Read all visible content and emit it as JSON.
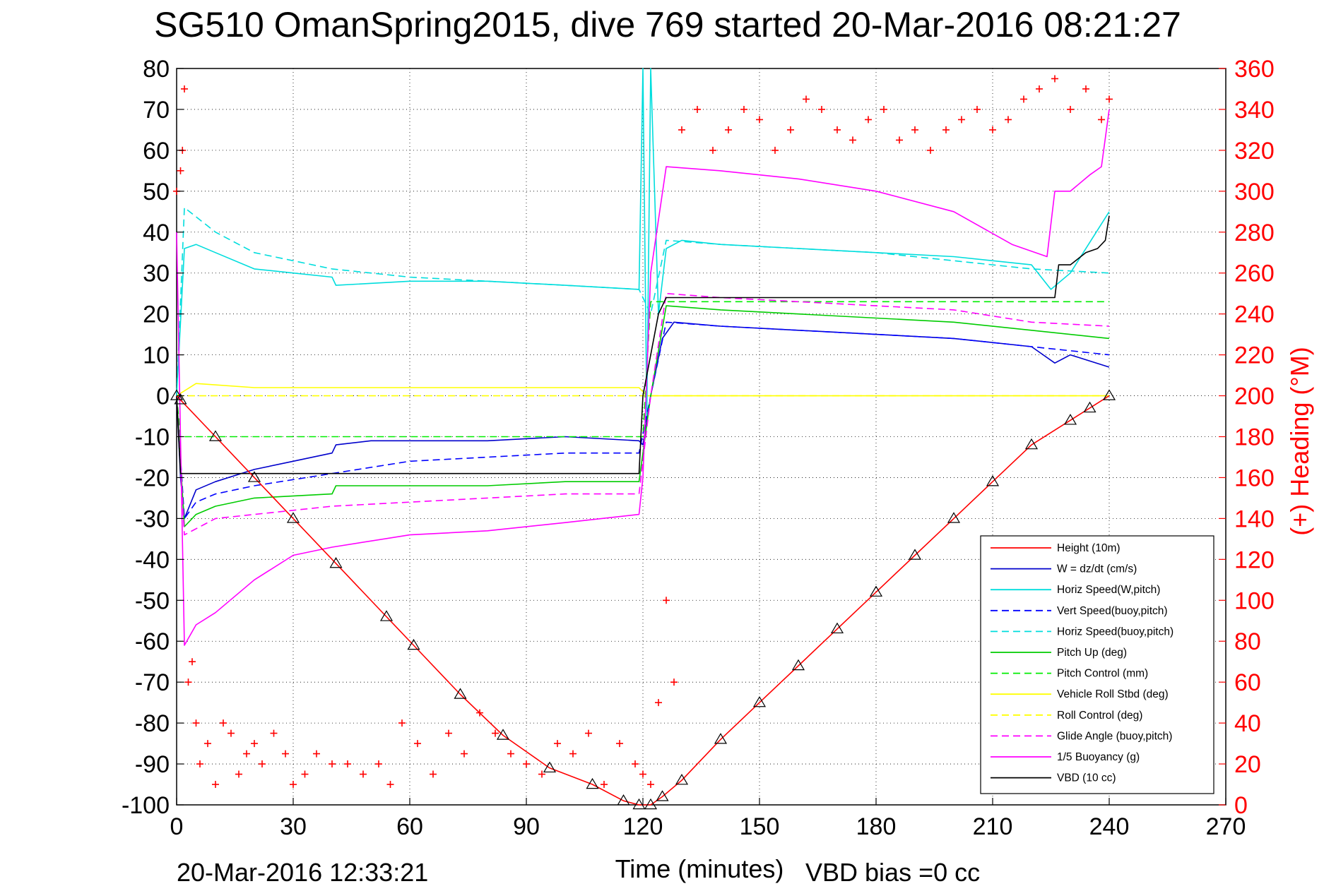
{
  "chart_data": {
    "type": "line",
    "title": "SG510 OmanSpring2015, dive 769 started 20-Mar-2016 08:21:27",
    "xlabel": "Time (minutes)",
    "ylabel_right": "(+) Heading (°M)",
    "xlim": [
      0,
      270
    ],
    "ylim": [
      -100,
      80
    ],
    "ylim_right": [
      0,
      360
    ],
    "x_ticks": [
      0,
      30,
      60,
      90,
      120,
      150,
      180,
      210,
      240,
      270
    ],
    "y_ticks": [
      80,
      70,
      60,
      50,
      40,
      30,
      20,
      10,
      0,
      -10,
      -20,
      -30,
      -40,
      -50,
      -60,
      -70,
      -80,
      -90,
      -100
    ],
    "y_ticks_right": [
      360,
      340,
      320,
      300,
      280,
      260,
      240,
      220,
      200,
      180,
      160,
      140,
      120,
      100,
      80,
      60,
      40,
      20,
      0
    ],
    "grid": true,
    "legend_position": "bottom-right",
    "footer_left": "20-Mar-2016 12:33:21",
    "footer_right": "VBD bias =0 cc",
    "series": [
      {
        "name": "Height (10m)",
        "color": "#ff0000",
        "style": "solid",
        "marker": "triangle",
        "x": [
          0,
          1,
          10,
          20,
          30,
          41,
          54,
          61,
          73,
          84,
          96,
          107,
          115,
          119,
          122,
          125,
          130,
          140,
          150,
          160,
          170,
          180,
          190,
          200,
          210,
          220,
          230,
          235,
          240
        ],
        "y": [
          0,
          -1,
          -10,
          -20,
          -30,
          -41,
          -54,
          -61,
          -73,
          -83,
          -91,
          -95,
          -99,
          -100,
          -100,
          -98,
          -94,
          -84,
          -75,
          -66,
          -57,
          -48,
          -39,
          -30,
          -21,
          -12,
          -6,
          -3,
          0
        ]
      },
      {
        "name": "W = dz/dt (cm/s)",
        "color": "#0000cc",
        "style": "solid",
        "x": [
          0,
          1,
          2,
          5,
          10,
          20,
          30,
          40,
          41,
          50,
          60,
          80,
          100,
          119,
          120,
          122,
          125,
          128,
          140,
          160,
          180,
          200,
          220,
          226,
          230,
          240
        ],
        "y": [
          0,
          -20,
          -30,
          -23,
          -21,
          -18,
          -16,
          -14,
          -12,
          -11,
          -11,
          -11,
          -10,
          -11,
          -12,
          0,
          14,
          18,
          17,
          16,
          15,
          14,
          12,
          8,
          10,
          7
        ]
      },
      {
        "name": "Horiz Speed(W,pitch)",
        "color": "#00dddd",
        "style": "solid",
        "x": [
          0,
          2,
          5,
          10,
          20,
          30,
          40,
          41,
          60,
          80,
          100,
          119,
          120,
          121,
          122,
          124,
          126,
          130,
          140,
          160,
          180,
          200,
          220,
          225,
          230,
          240
        ],
        "y": [
          0,
          36,
          37,
          35,
          31,
          30,
          29,
          27,
          28,
          28,
          27,
          26,
          80,
          -5,
          80,
          20,
          36,
          38,
          37,
          36,
          35,
          34,
          32,
          26,
          30,
          45
        ]
      },
      {
        "name": "Vert Speed(buoy,pitch)",
        "color": "#0000ff",
        "style": "dashed",
        "x": [
          0,
          2,
          5,
          10,
          20,
          40,
          60,
          80,
          100,
          119,
          122,
          126,
          140,
          160,
          180,
          200,
          220,
          240
        ],
        "y": [
          0,
          -30,
          -26,
          -24,
          -22,
          -19,
          -16,
          -15,
          -14,
          -14,
          0,
          18,
          17,
          16,
          15,
          14,
          12,
          10
        ]
      },
      {
        "name": "Horiz Speed(buoy,pitch)",
        "color": "#00dddd",
        "style": "dashed",
        "x": [
          0,
          2,
          10,
          20,
          30,
          40,
          60,
          80,
          100,
          119,
          122,
          126,
          140,
          160,
          180,
          200,
          220,
          240
        ],
        "y": [
          0,
          46,
          40,
          35,
          33,
          31,
          29,
          28,
          27,
          26,
          20,
          38,
          37,
          36,
          35,
          33,
          31,
          30
        ]
      },
      {
        "name": "Pitch Up (deg)",
        "color": "#00cc00",
        "style": "solid",
        "x": [
          0,
          2,
          5,
          10,
          20,
          40,
          41,
          60,
          80,
          100,
          119,
          122,
          126,
          140,
          160,
          180,
          200,
          220,
          240
        ],
        "y": [
          0,
          -32,
          -29,
          -27,
          -25,
          -24,
          -22,
          -22,
          -22,
          -21,
          -21,
          0,
          22,
          21,
          20,
          19,
          18,
          16,
          14
        ]
      },
      {
        "name": "Pitch Control (mm)",
        "color": "#00ee00",
        "style": "dashed",
        "x": [
          0,
          1,
          120,
          122,
          240
        ],
        "y": [
          0,
          -10,
          -10,
          23,
          23
        ]
      },
      {
        "name": "Vehicle Roll Stbd (deg)",
        "color": "#ffff00",
        "style": "solid",
        "x": [
          0,
          5,
          20,
          40,
          60,
          80,
          100,
          119,
          121,
          140,
          160,
          180,
          200,
          220,
          240
        ],
        "y": [
          0,
          3,
          2,
          2,
          2,
          2,
          2,
          2,
          0,
          0,
          0,
          0,
          0,
          0,
          0
        ]
      },
      {
        "name": "Roll Control (deg)",
        "color": "#ffff00",
        "style": "dashed",
        "x": [
          0,
          120,
          240
        ],
        "y": [
          0,
          0,
          0
        ]
      },
      {
        "name": "Glide Angle (buoy,pitch)",
        "color": "#ff00ff",
        "style": "dashed",
        "x": [
          0,
          2,
          10,
          20,
          40,
          60,
          80,
          100,
          119,
          122,
          126,
          140,
          160,
          180,
          200,
          220,
          240
        ],
        "y": [
          0,
          -34,
          -30,
          -29,
          -27,
          -26,
          -25,
          -24,
          -24,
          0,
          25,
          24,
          23,
          22,
          21,
          18,
          17
        ]
      },
      {
        "name": "1/5 Buoyancy (g)",
        "color": "#ff00ff",
        "style": "solid",
        "x": [
          0,
          2,
          5,
          10,
          20,
          30,
          40,
          60,
          80,
          100,
          119,
          120,
          122,
          126,
          140,
          160,
          180,
          200,
          215,
          224,
          226,
          230,
          235,
          238,
          240
        ],
        "y": [
          40,
          -61,
          -56,
          -53,
          -45,
          -39,
          -37,
          -34,
          -33,
          -31,
          -29,
          -20,
          30,
          56,
          55,
          53,
          50,
          45,
          37,
          34,
          50,
          50,
          54,
          56,
          70
        ]
      },
      {
        "name": "VBD (10 cc)",
        "color": "#000000",
        "style": "solid",
        "x": [
          0,
          1,
          119,
          120,
          124,
          126,
          226,
          227,
          230,
          234,
          237,
          239,
          240
        ],
        "y": [
          0,
          -19,
          -19,
          0,
          20,
          24,
          24,
          32,
          32,
          35,
          36,
          38,
          44
        ]
      }
    ],
    "heading_series": {
      "name": "(+) Heading (°M)",
      "color": "#ff0000",
      "marker": "plus",
      "axis": "right",
      "x": [
        0,
        1,
        1.5,
        2,
        3,
        4,
        5,
        6,
        8,
        10,
        12,
        14,
        16,
        18,
        20,
        22,
        25,
        28,
        30,
        33,
        36,
        40,
        44,
        48,
        52,
        55,
        58,
        62,
        66,
        70,
        74,
        78,
        82,
        86,
        90,
        94,
        98,
        102,
        106,
        110,
        114,
        118,
        120,
        122,
        124,
        126,
        128,
        130,
        134,
        138,
        142,
        146,
        150,
        154,
        158,
        162,
        166,
        170,
        174,
        178,
        182,
        186,
        190,
        194,
        198,
        202,
        206,
        210,
        214,
        218,
        222,
        226,
        230,
        234,
        238,
        240
      ],
      "y": [
        300,
        310,
        320,
        350,
        60,
        70,
        40,
        20,
        30,
        10,
        40,
        35,
        15,
        25,
        30,
        20,
        35,
        25,
        10,
        15,
        25,
        20,
        20,
        15,
        20,
        10,
        40,
        30,
        15,
        35,
        25,
        45,
        35,
        25,
        20,
        15,
        30,
        25,
        35,
        10,
        30,
        20,
        15,
        10,
        50,
        100,
        60,
        330,
        340,
        320,
        330,
        340,
        335,
        320,
        330,
        345,
        340,
        330,
        325,
        335,
        340,
        325,
        330,
        320,
        330,
        335,
        340,
        330,
        335,
        345,
        350,
        355,
        340,
        350,
        335,
        345
      ]
    }
  },
  "legend": {
    "items": [
      {
        "label": "Height (10m)",
        "color": "#ff0000",
        "dash": "solid"
      },
      {
        "label": "W = dz/dt (cm/s)",
        "color": "#0000cc",
        "dash": "solid"
      },
      {
        "label": "Horiz Speed(W,pitch)",
        "color": "#00dddd",
        "dash": "solid"
      },
      {
        "label": "Vert Speed(buoy,pitch)",
        "color": "#0000ff",
        "dash": "dashed"
      },
      {
        "label": "Horiz Speed(buoy,pitch)",
        "color": "#00dddd",
        "dash": "dashed"
      },
      {
        "label": "Pitch Up (deg)",
        "color": "#00cc00",
        "dash": "solid"
      },
      {
        "label": "Pitch Control (mm)",
        "color": "#00ee00",
        "dash": "dashed"
      },
      {
        "label": "Vehicle Roll Stbd (deg)",
        "color": "#ffff00",
        "dash": "solid"
      },
      {
        "label": "Roll Control (deg)",
        "color": "#ffff00",
        "dash": "dashed"
      },
      {
        "label": "Glide Angle (buoy,pitch)",
        "color": "#ff00ff",
        "dash": "dashed"
      },
      {
        "label": "1/5 Buoyancy (g)",
        "color": "#ff00ff",
        "dash": "solid"
      },
      {
        "label": "VBD (10 cc)",
        "color": "#000000",
        "dash": "solid"
      }
    ]
  }
}
